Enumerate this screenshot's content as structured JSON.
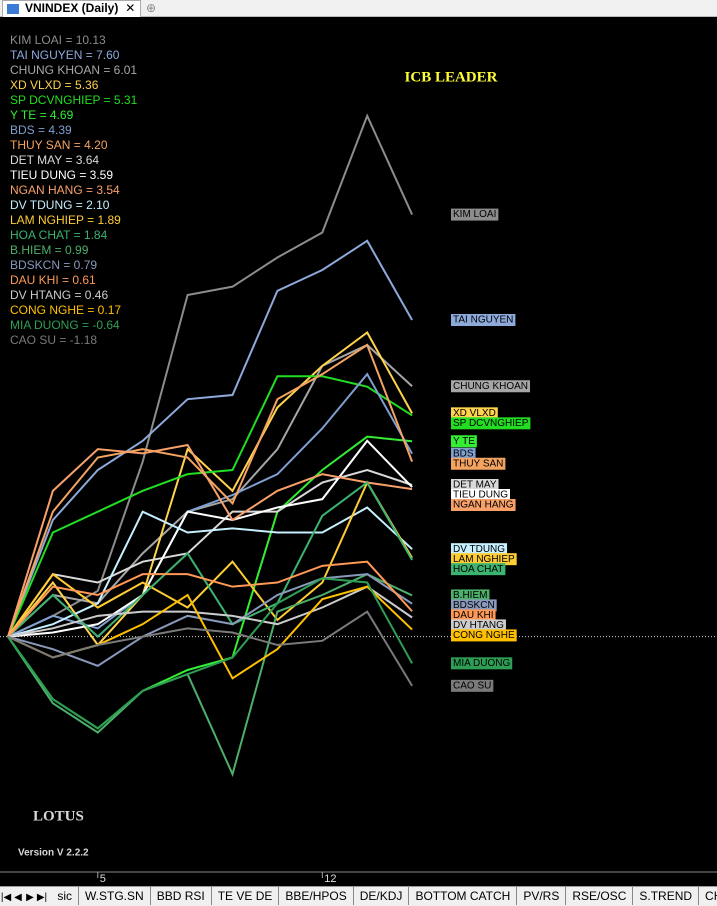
{
  "window": {
    "title": "VNINDEX (Daily)",
    "close": "✕"
  },
  "tabs": [
    "sic",
    "W.STG.SN",
    "BBD RSI",
    "TE VE DE",
    "BBE/HPOS",
    "DE/KDJ",
    "BOTTOM CATCH",
    "PV/RS",
    "RSE/OSC",
    "S.TREND",
    "CHIP DI"
  ],
  "watermark": "LOTUS",
  "version": "Version V 2.2.2",
  "chart_data": {
    "type": "line",
    "title": "ICB LEADER",
    "categories": [
      null,
      null,
      "5",
      null,
      null,
      null,
      null,
      "12",
      null,
      null
    ],
    "ylim": [
      -5.6,
      14.8
    ],
    "reference_line": 0,
    "legend_labels": [
      "KIM LOAI = 10.13",
      "TAI NGUYEN = 7.60",
      "CHUNG KHOAN = 6.01",
      "XD VLXD = 5.36",
      "SP DCVNGHIEP = 5.31",
      "Y TE = 4.69",
      "BDS = 4.39",
      "THUY SAN = 4.20",
      "DET MAY = 3.64",
      "TIEU DUNG = 3.59",
      "NGAN HANG = 3.54",
      "DV TDUNG = 2.10",
      "LAM NGHIEP = 1.89",
      "HOA CHAT = 1.84",
      "B.HIEM = 0.99",
      "BDSKCN = 0.79",
      "DAU KHI = 0.61",
      "DV HTANG = 0.46",
      "CONG NGHE = 0.17",
      "MIA DUONG = -0.64",
      "CAO SU = -1.18"
    ],
    "series": [
      {
        "name": "KIM LOAI",
        "color": "#8c8c8c",
        "values": [
          0,
          0.5,
          1.1,
          4.2,
          8.2,
          8.4,
          9.1,
          9.7,
          12.5,
          10.13
        ]
      },
      {
        "name": "TAI NGUYEN",
        "color": "#8eaadb",
        "values": [
          0,
          2.8,
          4.0,
          4.7,
          5.7,
          5.8,
          8.3,
          8.8,
          9.5,
          7.6
        ]
      },
      {
        "name": "CHUNG KHOAN",
        "color": "#a6a6a6",
        "values": [
          0,
          1.0,
          0.8,
          2.0,
          3.0,
          3.3,
          4.5,
          6.5,
          7.0,
          6.01
        ]
      },
      {
        "name": "XD VLXD",
        "color": "#ffd34d",
        "values": [
          0,
          1.3,
          -0.2,
          1.0,
          4.5,
          3.5,
          5.5,
          6.5,
          7.3,
          5.36
        ]
      },
      {
        "name": "SP DCVNGHIEP",
        "color": "#22dd22",
        "values": [
          0,
          2.5,
          3.0,
          3.5,
          3.9,
          4.0,
          6.25,
          6.25,
          6.0,
          5.31
        ]
      },
      {
        "name": "Y TE",
        "color": "#33ee33",
        "values": [
          0,
          -1.5,
          -2.2,
          -1.3,
          -0.8,
          -0.5,
          3.0,
          4.0,
          4.8,
          4.69
        ]
      },
      {
        "name": "BDS",
        "color": "#7f9fd0",
        "values": [
          0,
          0.5,
          0.2,
          1.0,
          3.0,
          3.4,
          3.9,
          5.0,
          6.3,
          4.39
        ]
      },
      {
        "name": "THUY SAN",
        "color": "#f4a460",
        "values": [
          0,
          3.0,
          4.3,
          4.5,
          4.3,
          3.2,
          5.7,
          6.3,
          7.0,
          4.2
        ]
      },
      {
        "name": "DET MAY",
        "color": "#d9d9d9",
        "values": [
          0,
          1.5,
          1.3,
          1.8,
          2.0,
          3.0,
          3.0,
          3.7,
          4.0,
          3.64
        ]
      },
      {
        "name": "TIEU DUNG",
        "color": "#ffffff",
        "values": [
          0,
          0.1,
          0.3,
          1.0,
          3.0,
          2.8,
          3.1,
          3.3,
          4.7,
          3.59
        ]
      },
      {
        "name": "NGAN HANG",
        "color": "#f8a06a",
        "values": [
          0,
          3.5,
          4.5,
          4.4,
          4.6,
          2.8,
          3.5,
          3.9,
          3.7,
          3.54
        ]
      },
      {
        "name": "DV TDUNG",
        "color": "#c6efff",
        "values": [
          0,
          0.3,
          0.8,
          3.0,
          2.5,
          2.6,
          2.5,
          2.5,
          3.1,
          2.1
        ]
      },
      {
        "name": "LAM NGHIEP",
        "color": "#ffcc33",
        "values": [
          0,
          1.5,
          0.7,
          1.3,
          0.7,
          1.8,
          0.4,
          1.3,
          3.7,
          1.89
        ]
      },
      {
        "name": "HOA CHAT",
        "color": "#3cb371",
        "values": [
          0,
          1.0,
          0,
          1.0,
          2.0,
          0.3,
          0.8,
          2.9,
          3.7,
          1.84
        ]
      },
      {
        "name": "B.HIEM",
        "color": "#4caf6a",
        "values": [
          0,
          -1.6,
          -2.3,
          -1.3,
          -0.9,
          -3.3,
          0.6,
          1.0,
          1.5,
          0.99
        ]
      },
      {
        "name": "BDSKCN",
        "color": "#8899bb",
        "values": [
          0,
          -0.3,
          -0.7,
          0,
          0.5,
          0.3,
          1.0,
          1.4,
          1.5,
          0.79
        ]
      },
      {
        "name": "DAU KHI",
        "color": "#ff9955",
        "values": [
          0,
          1.2,
          1.0,
          1.5,
          1.5,
          1.2,
          1.3,
          1.7,
          1.8,
          0.61
        ]
      },
      {
        "name": "DV HTANG",
        "color": "#cccccc",
        "values": [
          0,
          0.2,
          0.5,
          0.6,
          0.6,
          0.5,
          0.3,
          0.7,
          1.2,
          0.46
        ]
      },
      {
        "name": "CONG NGHE",
        "color": "#ffc000",
        "values": [
          0,
          -0.5,
          -0.2,
          0.3,
          1.0,
          -1.0,
          -0.3,
          0.9,
          1.2,
          0.17
        ]
      },
      {
        "name": "MIA DUONG",
        "color": "#2e9e55",
        "values": [
          0,
          -1.5,
          -2.2,
          -1.3,
          -0.9,
          -0.5,
          0.8,
          1.4,
          1.3,
          -0.64
        ]
      },
      {
        "name": "CAO SU",
        "color": "#7a7a7a",
        "values": [
          0,
          -0.5,
          -0.2,
          0,
          0.2,
          0.1,
          -0.2,
          -0.1,
          0.6,
          -1.18
        ]
      }
    ]
  }
}
